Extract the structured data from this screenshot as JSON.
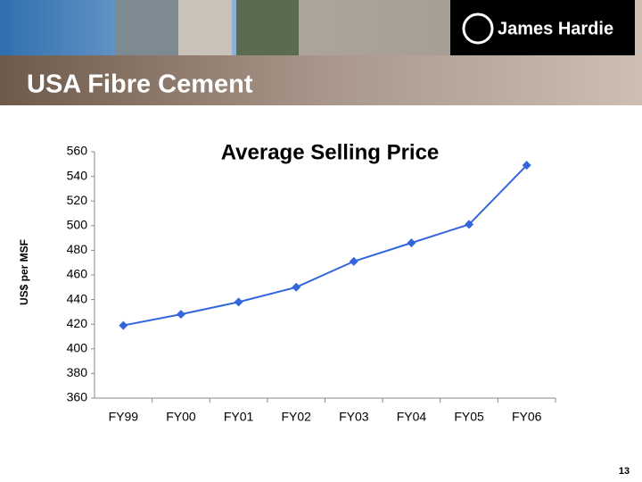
{
  "header": {
    "title": "USA Fibre Cement",
    "logo_text": "James Hardie"
  },
  "page_number": "13",
  "chart_data": {
    "type": "line",
    "title": "Average Selling Price",
    "y_label": "US$ per MSF",
    "categories": [
      "FY99",
      "FY00",
      "FY01",
      "FY02",
      "FY03",
      "FY04",
      "FY05",
      "FY06"
    ],
    "series": [
      {
        "name": "Average Selling Price",
        "color": "#3366dd",
        "values": [
          419,
          428,
          438,
          450,
          471,
          486,
          501,
          549
        ]
      }
    ],
    "ylim": [
      360,
      560
    ],
    "yticks": [
      360,
      380,
      400,
      420,
      440,
      460,
      480,
      500,
      520,
      540,
      560
    ],
    "grid": false
  }
}
